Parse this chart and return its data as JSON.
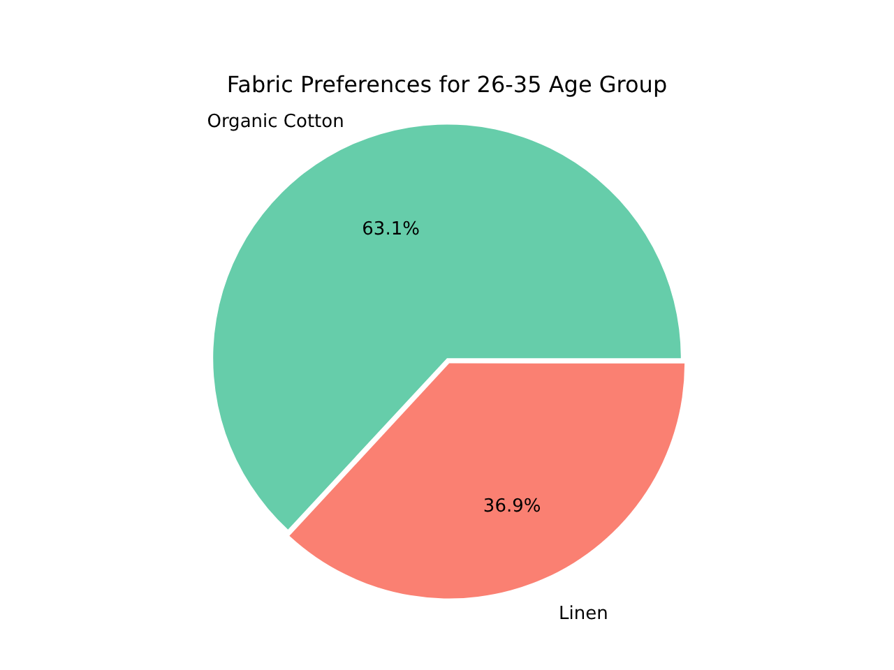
{
  "chart_data": {
    "type": "pie",
    "title": "Fabric Preferences for 26-35 Age Group",
    "categories": [
      "Organic Cotton",
      "Linen"
    ],
    "values": [
      63.1,
      36.9
    ],
    "colors": [
      "#66cdaa",
      "#fa8072"
    ],
    "value_labels": [
      "63.1%",
      "36.9%"
    ],
    "legend": false
  }
}
